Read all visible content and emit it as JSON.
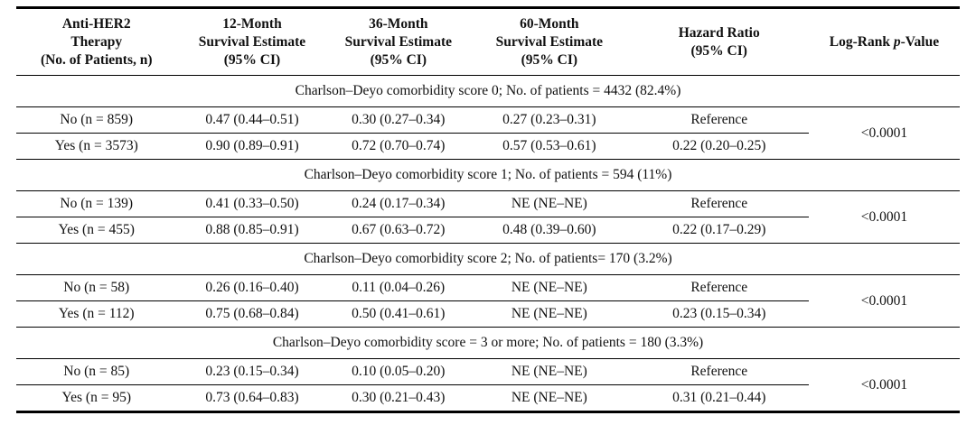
{
  "table": {
    "header": {
      "c1": {
        "l1": "Anti-HER2",
        "l2": "Therapy",
        "l3": "(No. of Patients, n)"
      },
      "c2": {
        "l1": "12-Month",
        "l2": "Survival Estimate",
        "l3": "(95% CI)"
      },
      "c3": {
        "l1": "36-Month",
        "l2": "Survival Estimate",
        "l3": "(95% CI)"
      },
      "c4": {
        "l1": "60-Month",
        "l2": "Survival Estimate",
        "l3": "(95% CI)"
      },
      "c5": {
        "l1": "Hazard Ratio",
        "l2": "(95% CI)"
      },
      "c6": {
        "pre": "Log-Rank ",
        "italic": "p",
        "post": "-Value"
      }
    },
    "sections": [
      {
        "title": "Charlson–Deyo comorbidity score 0; No. of patients = 4432 (82.4%)",
        "p_value": "<0.0001",
        "rows": [
          {
            "therapy": "No (n = 859)",
            "s12": "0.47 (0.44–0.51)",
            "s36": "0.30 (0.27–0.34)",
            "s60": "0.27 (0.23–0.31)",
            "hazard": "Reference"
          },
          {
            "therapy": "Yes (n = 3573)",
            "s12": "0.90 (0.89–0.91)",
            "s36": "0.72 (0.70–0.74)",
            "s60": "0.57 (0.53–0.61)",
            "hazard": "0.22 (0.20–0.25)"
          }
        ]
      },
      {
        "title": "Charlson–Deyo comorbidity score 1; No. of patients = 594 (11%)",
        "p_value": "<0.0001",
        "rows": [
          {
            "therapy": "No (n = 139)",
            "s12": "0.41 (0.33–0.50)",
            "s36": "0.24 (0.17–0.34)",
            "s60": "NE (NE–NE)",
            "hazard": "Reference"
          },
          {
            "therapy": "Yes (n = 455)",
            "s12": "0.88 (0.85–0.91)",
            "s36": "0.67 (0.63–0.72)",
            "s60": "0.48 (0.39–0.60)",
            "hazard": "0.22 (0.17–0.29)"
          }
        ]
      },
      {
        "title": "Charlson–Deyo comorbidity score 2; No. of patients= 170 (3.2%)",
        "p_value": "<0.0001",
        "rows": [
          {
            "therapy": "No (n = 58)",
            "s12": "0.26 (0.16–0.40)",
            "s36": "0.11 (0.04–0.26)",
            "s60": "NE (NE–NE)",
            "hazard": "Reference"
          },
          {
            "therapy": "Yes (n = 112)",
            "s12": "0.75 (0.68–0.84)",
            "s36": "0.50 (0.41–0.61)",
            "s60": "NE (NE–NE)",
            "hazard": "0.23 (0.15–0.34)"
          }
        ]
      },
      {
        "title": "Charlson–Deyo comorbidity score = 3 or more; No. of patients = 180 (3.3%)",
        "p_value": "<0.0001",
        "rows": [
          {
            "therapy": "No (n = 85)",
            "s12": "0.23 (0.15–0.34)",
            "s36": "0.10 (0.05–0.20)",
            "s60": "NE (NE–NE)",
            "hazard": "Reference"
          },
          {
            "therapy": "Yes (n = 95)",
            "s12": "0.73 (0.64–0.83)",
            "s36": "0.30 (0.21–0.43)",
            "s60": "NE (NE–NE)",
            "hazard": "0.31 (0.21–0.44)"
          }
        ]
      }
    ]
  }
}
